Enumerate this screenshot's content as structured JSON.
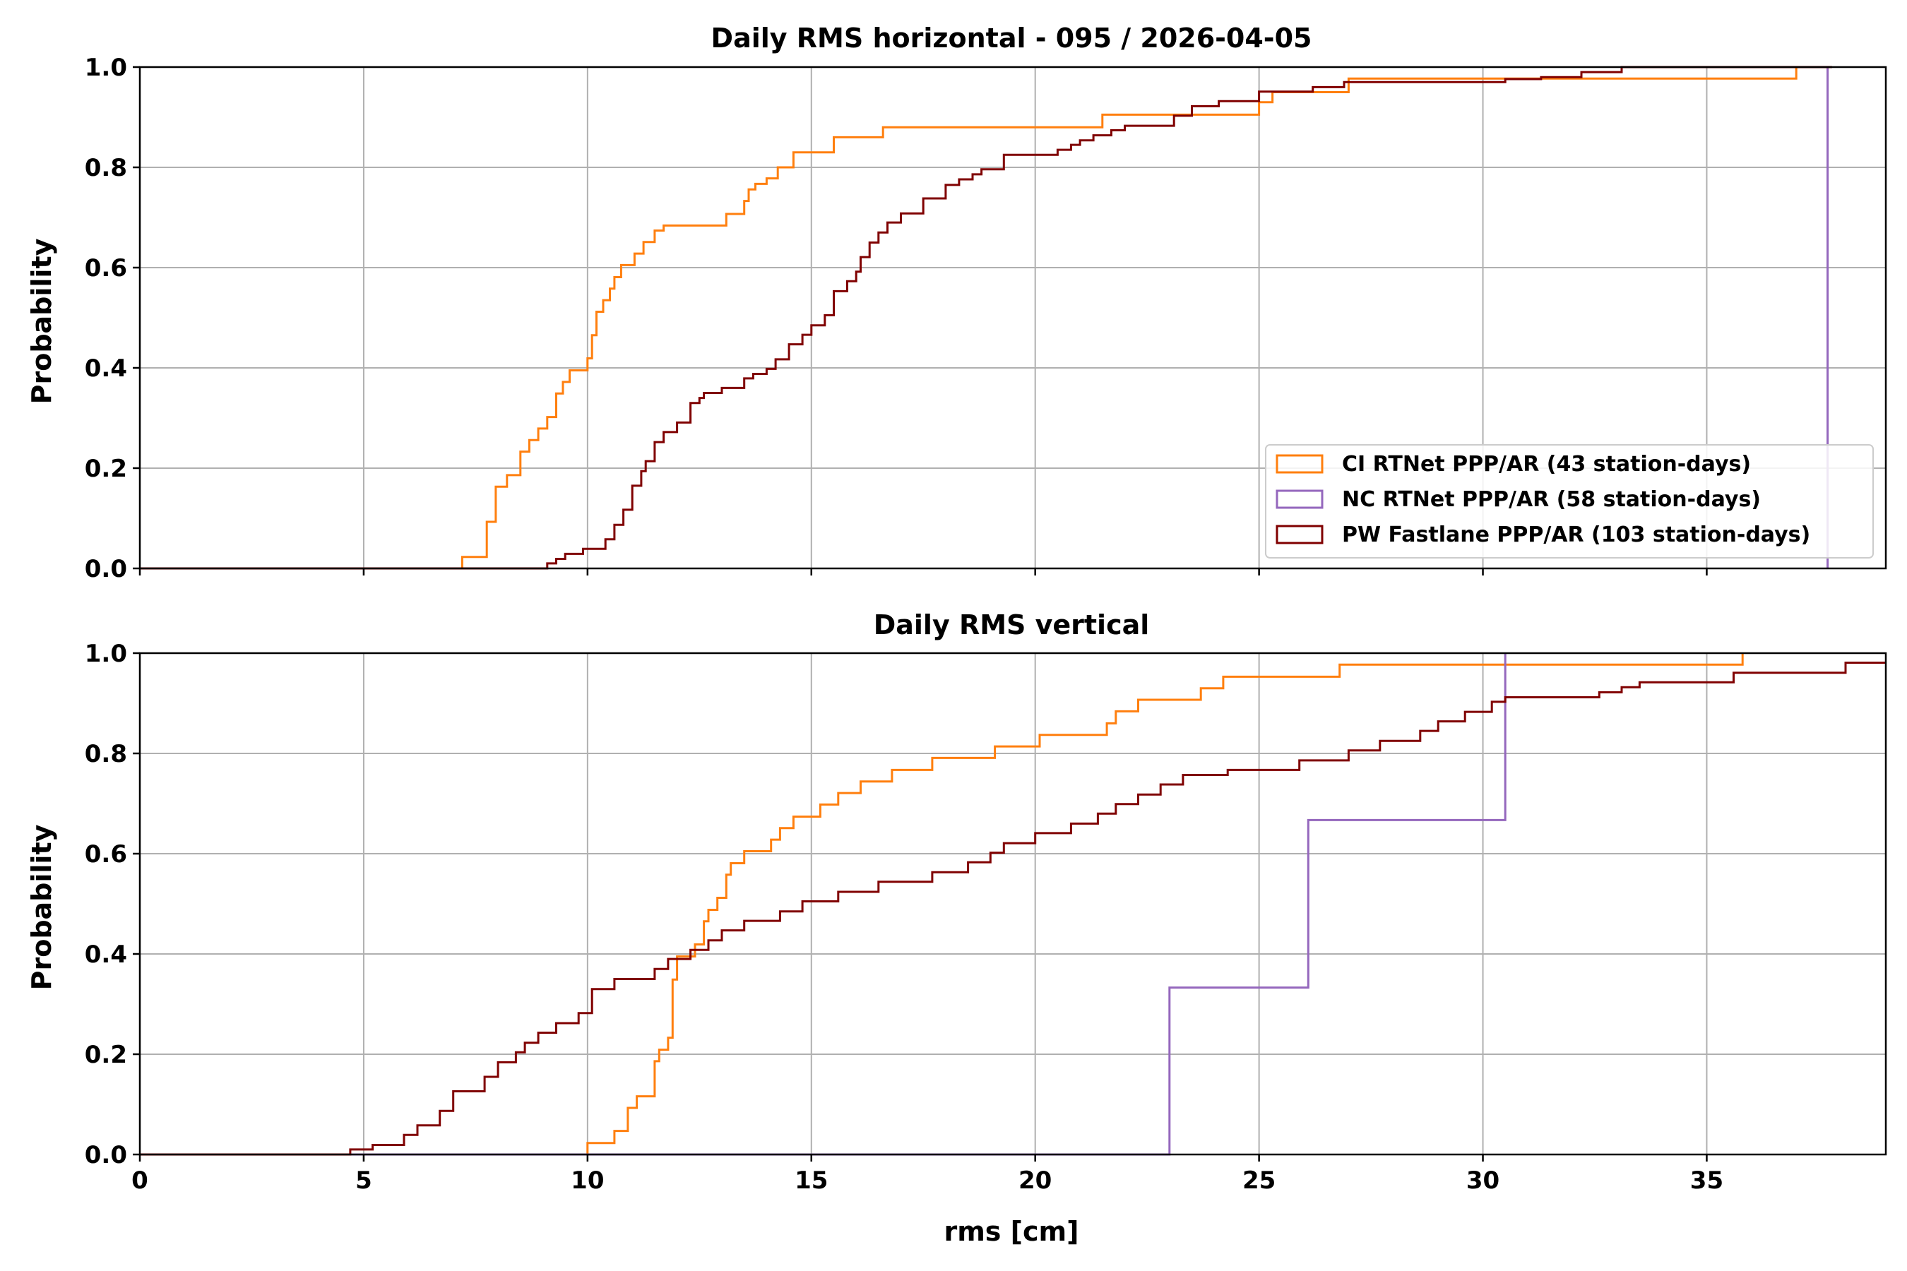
{
  "chart_data": [
    {
      "type": "line",
      "title": "Daily RMS horizontal - 095  / 2026-04-05",
      "xlabel": "",
      "ylabel": "Probability",
      "xlim": [
        0,
        39
      ],
      "ylim": [
        0,
        1
      ],
      "xticks": [
        0,
        5,
        10,
        15,
        20,
        25,
        30,
        35
      ],
      "xticklabels_visible": false,
      "yticks": [
        0.0,
        0.2,
        0.4,
        0.6,
        0.8,
        1.0
      ],
      "yticklabels": [
        "0.0",
        "0.2",
        "0.4",
        "0.6",
        "0.8",
        "1.0"
      ],
      "grid": true,
      "legend_position": "lower-right",
      "series": [
        {
          "name": "CI RTNet PPP/AR (43 station-days)",
          "color": "#ff7f0e",
          "x": [
            0,
            7.2,
            7.75,
            7.95,
            8.2,
            8.5,
            8.7,
            8.9,
            9.1,
            9.3,
            9.45,
            9.6,
            10.0,
            10.1,
            10.2,
            10.35,
            10.5,
            10.6,
            10.75,
            11.05,
            11.25,
            11.5,
            11.6,
            11.7,
            13.1,
            13.5,
            13.6,
            13.75,
            14.0,
            14.2,
            14.25,
            14.5,
            14.6,
            15.5,
            16.0,
            16.6,
            21.5,
            25.0,
            25.3,
            26.5,
            27.0,
            37.0
          ],
          "y": [
            0.0,
            0.023,
            0.093,
            0.163,
            0.186,
            0.233,
            0.256,
            0.279,
            0.302,
            0.349,
            0.372,
            0.395,
            0.419,
            0.465,
            0.512,
            0.535,
            0.558,
            0.581,
            0.605,
            0.628,
            0.651,
            0.674,
            0.674,
            0.684,
            0.707,
            0.733,
            0.756,
            0.767,
            0.778,
            0.778,
            0.8,
            0.8,
            0.83,
            0.86,
            0.86,
            0.88,
            0.905,
            0.93,
            0.95,
            0.95,
            0.977,
            1.0
          ]
        },
        {
          "name": "NC RTNet PPP/AR (58 station-days)",
          "color": "#9467bd",
          "x": [
            37.7,
            37.7
          ],
          "y": [
            0.0,
            1.0
          ]
        },
        {
          "name": "PW Fastlane PPP/AR (103 station-days)",
          "color": "#800000",
          "x": [
            0,
            9.1,
            9.3,
            9.5,
            9.9,
            10.4,
            10.6,
            10.8,
            11.0,
            11.2,
            11.3,
            11.5,
            11.7,
            12.0,
            12.3,
            12.5,
            12.6,
            13.0,
            13.5,
            13.7,
            14.0,
            14.2,
            14.5,
            14.8,
            15.0,
            15.3,
            15.5,
            15.8,
            16.0,
            16.1,
            16.3,
            16.5,
            16.7,
            17.0,
            17.5,
            18.0,
            18.3,
            18.6,
            18.8,
            19.3,
            20.5,
            20.8,
            21.0,
            21.3,
            21.7,
            22.0,
            23.1,
            23.5,
            24.1,
            25.0,
            25.8,
            26.2,
            26.9,
            29.0,
            30.0,
            30.5,
            31.3,
            32.2,
            33.1,
            37.8
          ],
          "y": [
            0.0,
            0.01,
            0.019,
            0.029,
            0.039,
            0.058,
            0.087,
            0.117,
            0.165,
            0.194,
            0.214,
            0.252,
            0.272,
            0.291,
            0.33,
            0.34,
            0.35,
            0.36,
            0.379,
            0.388,
            0.398,
            0.417,
            0.447,
            0.466,
            0.485,
            0.505,
            0.553,
            0.573,
            0.592,
            0.621,
            0.65,
            0.67,
            0.69,
            0.708,
            0.738,
            0.765,
            0.776,
            0.786,
            0.796,
            0.825,
            0.835,
            0.845,
            0.854,
            0.864,
            0.874,
            0.883,
            0.903,
            0.922,
            0.932,
            0.951,
            0.951,
            0.96,
            0.97,
            0.97,
            0.97,
            0.976,
            0.98,
            0.99,
            1.0,
            1.0
          ]
        }
      ]
    },
    {
      "type": "line",
      "title": "Daily RMS vertical",
      "xlabel": "rms [cm]",
      "ylabel": "Probability",
      "xlim": [
        0,
        39
      ],
      "ylim": [
        0,
        1
      ],
      "xticks": [
        0,
        5,
        10,
        15,
        20,
        25,
        30,
        35
      ],
      "xticklabels": [
        "0",
        "5",
        "10",
        "15",
        "20",
        "25",
        "30",
        "35"
      ],
      "yticks": [
        0.0,
        0.2,
        0.4,
        0.6,
        0.8,
        1.0
      ],
      "yticklabels": [
        "0.0",
        "0.2",
        "0.4",
        "0.6",
        "0.8",
        "1.0"
      ],
      "grid": true,
      "series": [
        {
          "name": "CI RTNet PPP/AR (43 station-days)",
          "color": "#ff7f0e",
          "x": [
            0,
            10.0,
            10.6,
            10.9,
            11.1,
            11.5,
            11.6,
            11.8,
            11.9,
            12.0,
            12.4,
            12.6,
            12.7,
            12.9,
            13.1,
            13.2,
            13.5,
            14.1,
            14.3,
            14.6,
            15.2,
            15.6,
            16.1,
            16.8,
            17.7,
            19.1,
            20.1,
            21.6,
            21.8,
            22.3,
            23.7,
            24.2,
            26.8,
            35.8
          ],
          "y": [
            0.0,
            0.023,
            0.047,
            0.093,
            0.116,
            0.186,
            0.209,
            0.233,
            0.349,
            0.395,
            0.419,
            0.465,
            0.488,
            0.512,
            0.558,
            0.581,
            0.605,
            0.628,
            0.651,
            0.674,
            0.698,
            0.721,
            0.744,
            0.767,
            0.791,
            0.814,
            0.837,
            0.86,
            0.884,
            0.907,
            0.93,
            0.953,
            0.977,
            1.0
          ]
        },
        {
          "name": "NC RTNet PPP/AR (58 station-days)",
          "color": "#9467bd",
          "x": [
            0,
            23.0,
            26.1,
            30.5
          ],
          "y": [
            0.0,
            0.333,
            0.667,
            1.0
          ]
        },
        {
          "name": "PW Fastlane PPP/AR (103 station-days)",
          "color": "#800000",
          "x": [
            0,
            4.7,
            5.2,
            5.9,
            6.2,
            6.7,
            7.0,
            7.7,
            8.0,
            8.4,
            8.6,
            8.9,
            9.3,
            9.8,
            10.1,
            10.6,
            11.5,
            11.8,
            12.3,
            12.7,
            13.0,
            13.5,
            14.3,
            14.8,
            15.6,
            16.5,
            17.7,
            18.5,
            19.0,
            19.3,
            20.0,
            20.8,
            21.4,
            21.8,
            22.3,
            22.8,
            23.3,
            24.3,
            25.9,
            27.0,
            27.7,
            28.6,
            29.0,
            29.6,
            30.2,
            30.5,
            32.6,
            33.1,
            33.5,
            35.6,
            38.1,
            39.0
          ],
          "y": [
            0.0,
            0.01,
            0.019,
            0.039,
            0.058,
            0.087,
            0.126,
            0.155,
            0.184,
            0.204,
            0.223,
            0.243,
            0.262,
            0.282,
            0.33,
            0.35,
            0.37,
            0.39,
            0.408,
            0.427,
            0.447,
            0.466,
            0.485,
            0.505,
            0.524,
            0.544,
            0.563,
            0.583,
            0.602,
            0.621,
            0.641,
            0.66,
            0.68,
            0.699,
            0.718,
            0.738,
            0.757,
            0.767,
            0.786,
            0.806,
            0.825,
            0.845,
            0.864,
            0.883,
            0.903,
            0.912,
            0.922,
            0.932,
            0.942,
            0.961,
            0.981,
            0.981
          ]
        }
      ]
    }
  ]
}
